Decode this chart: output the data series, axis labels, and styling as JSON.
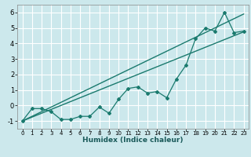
{
  "title": "",
  "xlabel": "Humidex (Indice chaleur)",
  "bg_color": "#cce8ec",
  "grid_color": "#ffffff",
  "line_color": "#1a7a6e",
  "xlim": [
    -0.5,
    23.5
  ],
  "ylim": [
    -1.5,
    6.5
  ],
  "xticks": [
    0,
    1,
    2,
    3,
    4,
    5,
    6,
    7,
    8,
    9,
    10,
    11,
    12,
    13,
    14,
    15,
    16,
    17,
    18,
    19,
    20,
    21,
    22,
    23
  ],
  "yticks": [
    -1,
    0,
    1,
    2,
    3,
    4,
    5,
    6
  ],
  "line1_x": [
    0,
    23
  ],
  "line1_y": [
    -1.0,
    4.75
  ],
  "line2_x": [
    0,
    23
  ],
  "line2_y": [
    -1.0,
    5.9
  ],
  "data_x": [
    0,
    1,
    2,
    3,
    4,
    5,
    6,
    7,
    8,
    9,
    10,
    11,
    12,
    13,
    14,
    15,
    16,
    17,
    18,
    19,
    20,
    21,
    22,
    23
  ],
  "data_y": [
    -1.0,
    -0.2,
    -0.2,
    -0.4,
    -0.9,
    -0.9,
    -0.7,
    -0.7,
    -0.1,
    -0.5,
    0.4,
    1.1,
    1.2,
    0.8,
    0.9,
    0.5,
    1.7,
    2.6,
    4.3,
    5.0,
    4.8,
    6.0,
    4.7,
    4.8
  ]
}
